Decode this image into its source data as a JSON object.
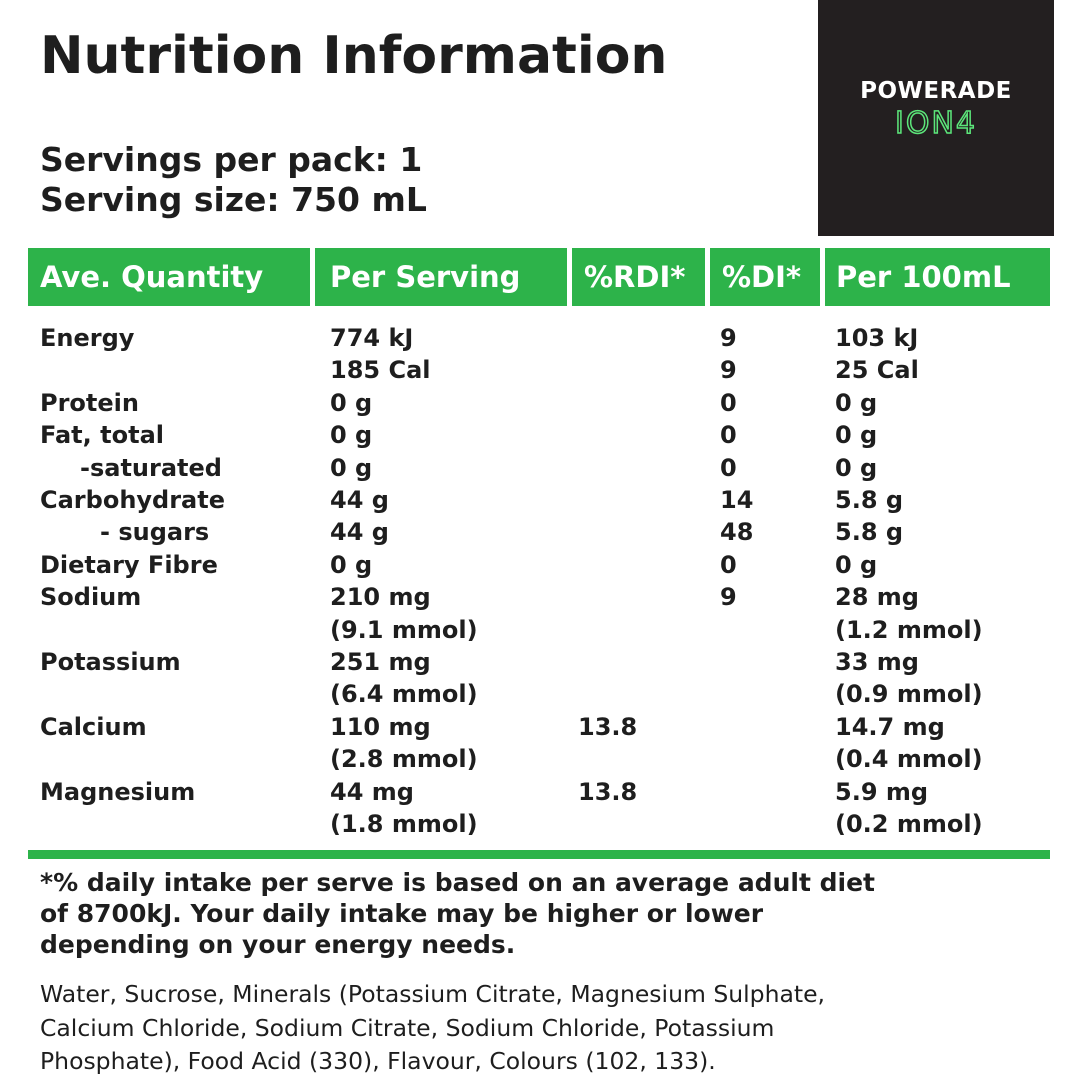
{
  "title": "Nutrition Information",
  "servings": [
    "Servings per pack: 1",
    "Serving size: 750 mL"
  ],
  "logo": {
    "brand": "POWERADE",
    "product": "ION4"
  },
  "table": {
    "header": [
      "Ave. Quantity",
      "Per Serving",
      "%RDI*",
      "%DI*",
      "Per 100mL"
    ],
    "rows": [
      {
        "name": "Energy",
        "per_serving": [
          "774 kJ",
          "185 Cal"
        ],
        "rdi": null,
        "di": [
          "9",
          "9"
        ],
        "per_100ml": [
          "103 kJ",
          "25 Cal"
        ]
      },
      {
        "name": "Protein",
        "per_serving": [
          "0 g"
        ],
        "rdi": null,
        "di": [
          "0"
        ],
        "per_100ml": [
          "0 g"
        ]
      },
      {
        "name": "Fat, total",
        "per_serving": [
          "0 g"
        ],
        "rdi": null,
        "di": [
          "0"
        ],
        "per_100ml": [
          "0 g"
        ]
      },
      {
        "name": "-saturated",
        "per_serving": [
          "0 g"
        ],
        "rdi": null,
        "di": [
          "0"
        ],
        "per_100ml": [
          "0 g"
        ]
      },
      {
        "name": "Carbohydrate",
        "per_serving": [
          "44 g"
        ],
        "rdi": null,
        "di": [
          "14"
        ],
        "per_100ml": [
          "5.8 g"
        ]
      },
      {
        "name": "- sugars",
        "per_serving": [
          "44 g"
        ],
        "rdi": null,
        "di": [
          "48"
        ],
        "per_100ml": [
          "5.8 g"
        ]
      },
      {
        "name": "Dietary Fibre",
        "per_serving": [
          "0 g"
        ],
        "rdi": null,
        "di": [
          "0"
        ],
        "per_100ml": [
          "0 g"
        ]
      },
      {
        "name": "Sodium",
        "per_serving": [
          "210 mg",
          "(9.1 mmol)"
        ],
        "rdi": null,
        "di": [
          "9"
        ],
        "per_100ml": [
          "28 mg",
          "(1.2 mmol)"
        ]
      },
      {
        "name": "Potassium",
        "per_serving": [
          "251 mg",
          "(6.4 mmol)"
        ],
        "rdi": null,
        "di": null,
        "per_100ml": [
          "33 mg",
          "(0.9 mmol)"
        ]
      },
      {
        "name": "Calcium",
        "per_serving": [
          "110 mg",
          "(2.8 mmol)"
        ],
        "rdi": [
          "13.8"
        ],
        "di": null,
        "per_100ml": [
          "14.7 mg",
          "(0.4 mmol)"
        ]
      },
      {
        "name": "Magnesium",
        "per_serving": [
          "44 mg",
          "(1.8 mmol)"
        ],
        "rdi": [
          "13.8"
        ],
        "di": null,
        "per_100ml": [
          "5.9 mg",
          "(0.2 mmol)"
        ]
      }
    ]
  },
  "footnote": [
    "*% daily intake per serve is based on an average adult diet",
    "of 8700kJ. Your daily intake may be higher or lower",
    "depending on your energy needs."
  ],
  "ingredients": [
    "Water, Sucrose, Minerals (Potassium Citrate, Magnesium Sulphate,",
    "Calcium Chloride, Sodium Citrate, Sodium Chloride, Potassium",
    "Phosphate), Food Acid (330), Flavour, Colours (102, 133)."
  ]
}
